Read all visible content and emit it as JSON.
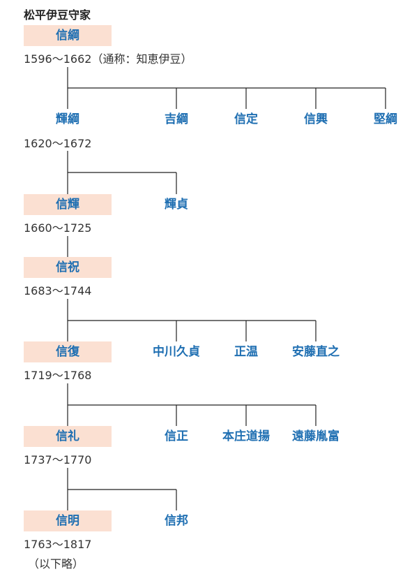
{
  "title": "松平伊豆守家",
  "generations": [
    {
      "name": "信綱",
      "dates": "1596～1662",
      "alias": "（通称：知恵伊豆）",
      "siblings": [
        "輝綱",
        "吉綱",
        "信定",
        "信興",
        "堅綱"
      ]
    },
    {
      "name": "輝綱",
      "dates": "1620～1672",
      "siblings": [
        "信輝",
        "輝貞"
      ]
    },
    {
      "name": "信輝",
      "dates": "1660～1725",
      "siblings": []
    },
    {
      "name": "信祝",
      "dates": "1683～1744",
      "siblings": [
        "信復",
        "中川久貞",
        "正温",
        "安藤直之"
      ]
    },
    {
      "name": "信復",
      "dates": "1719～1768",
      "siblings": [
        "信礼",
        "信正",
        "本庄道揚",
        "遠藤胤富"
      ]
    },
    {
      "name": "信礼",
      "dates": "1737～1770",
      "siblings": [
        "信明",
        "信邦"
      ]
    },
    {
      "name": "信明",
      "dates": "1763～1817",
      "siblings": []
    }
  ],
  "footer_note": "（以下略）",
  "colors": {
    "name_text": "#1f6fb2",
    "name_highlight": "#fbe0d2",
    "line": "#222222"
  }
}
